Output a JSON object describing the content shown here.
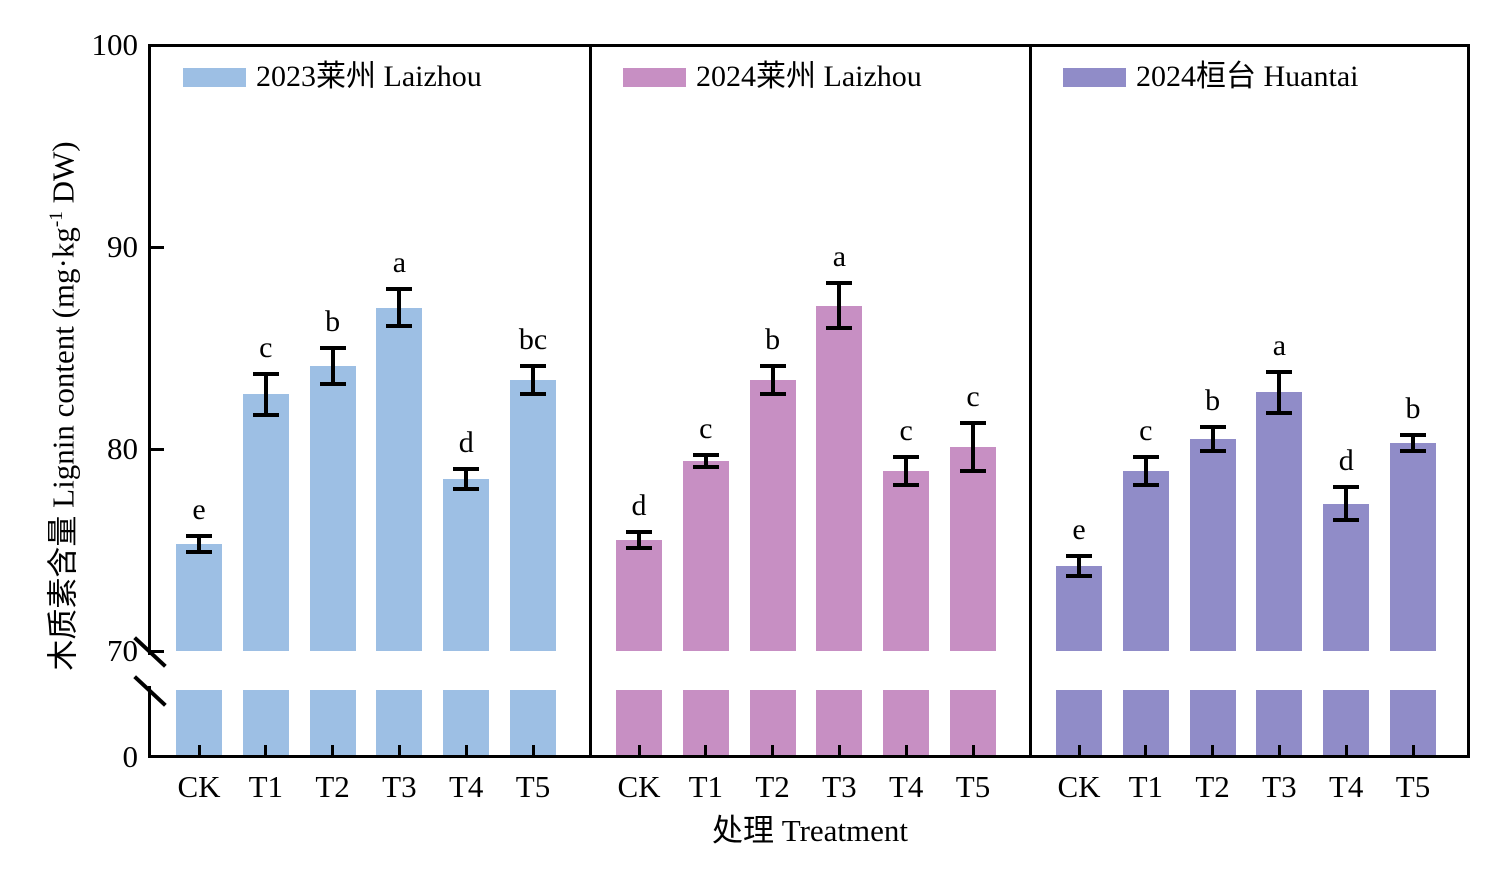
{
  "chart_data": {
    "type": "bar",
    "title": "",
    "categories": [
      "CK",
      "T1",
      "T2",
      "T3",
      "T4",
      "T5"
    ],
    "xlabel": "处理 Treatment",
    "ylabel": "木质素含量 Lignin content (mg·kg⁻¹ DW)",
    "ylabel_parts": {
      "pre": "木质素含量 Lignin content (mg·kg",
      "sup": "-1",
      "post": " DW)"
    },
    "y_axis": {
      "tick_labels": [
        "100",
        "90",
        "80",
        "70",
        "0"
      ],
      "tick_values": [
        100,
        90,
        80,
        70,
        0
      ],
      "linear_range": [
        70,
        100
      ],
      "axis_break_between": [
        0,
        70
      ],
      "grid": false
    },
    "legend_position": "top-inside-per-panel",
    "series": [
      {
        "name": "2023莱州 Laizhou",
        "color": "#9DBFE4",
        "values": [
          75.3,
          82.7,
          84.1,
          87.0,
          78.5,
          83.4
        ],
        "errors": [
          0.4,
          1.0,
          0.9,
          0.9,
          0.5,
          0.7
        ],
        "letters": [
          "e",
          "c",
          "b",
          "a",
          "d",
          "bc"
        ]
      },
      {
        "name": "2024莱州 Laizhou",
        "color": "#C78FC3",
        "values": [
          75.5,
          79.4,
          83.4,
          87.1,
          78.9,
          80.1
        ],
        "errors": [
          0.4,
          0.3,
          0.7,
          1.1,
          0.7,
          1.2
        ],
        "letters": [
          "d",
          "c",
          "b",
          "a",
          "c",
          "c"
        ]
      },
      {
        "name": "2024桓台 Huantai",
        "color": "#908CC8",
        "values": [
          74.2,
          78.9,
          80.5,
          82.8,
          77.3,
          80.3
        ],
        "errors": [
          0.5,
          0.7,
          0.6,
          1.0,
          0.8,
          0.4
        ],
        "letters": [
          "e",
          "c",
          "b",
          "a",
          "d",
          "b"
        ]
      }
    ],
    "colors": {
      "bar_2023_laizhou": "#9DBFE4",
      "bar_2024_laizhou": "#C78FC3",
      "bar_2024_huantai": "#908CC8",
      "axis": "#000000"
    }
  }
}
